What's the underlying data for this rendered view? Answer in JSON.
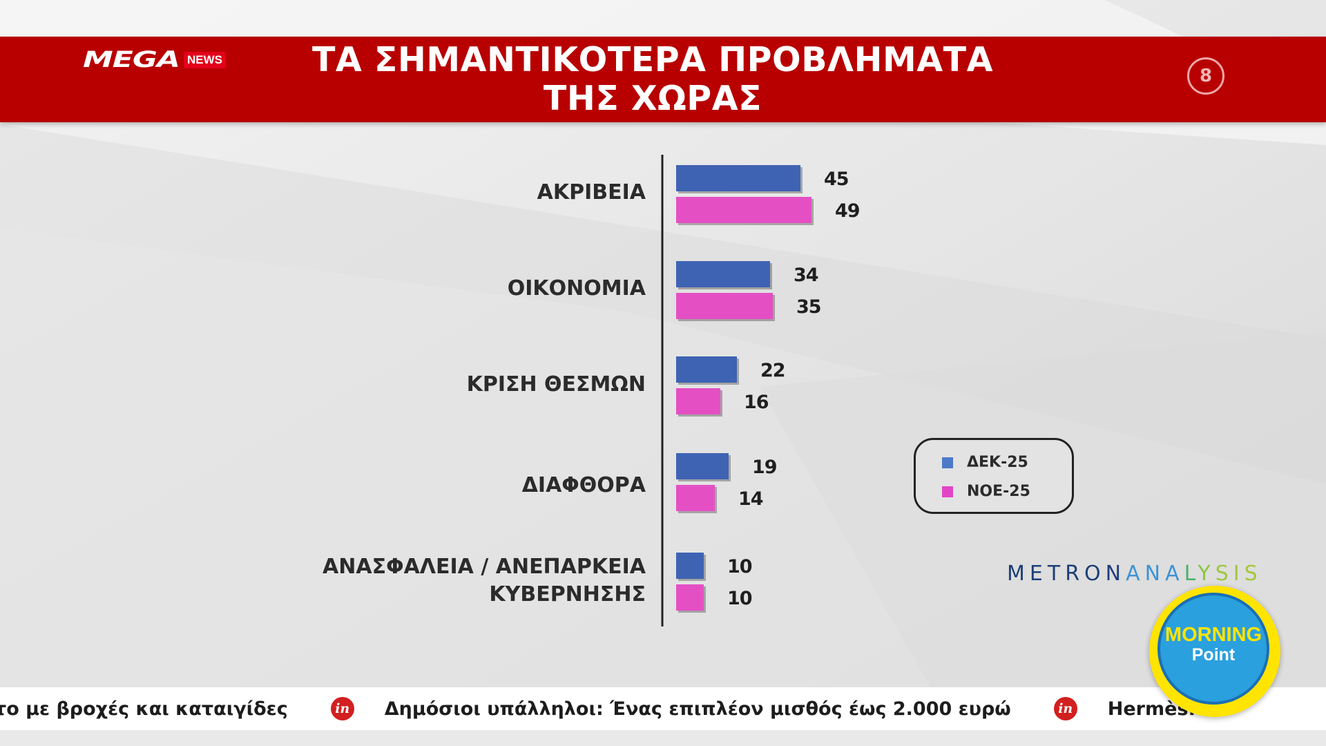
{
  "header": {
    "logo_main": "MEGA",
    "logo_tag": "NEWS",
    "title_line1": "ΤΑ ΣΗΜΑΝΤΙΚΟΤΕΡΑ ΠΡΟΒΛΗΜΑΤΑ",
    "title_line2": "ΤΗΣ ΧΩΡΑΣ",
    "page_number": "8"
  },
  "chart_data": {
    "type": "bar",
    "orientation": "horizontal",
    "categories": [
      [
        "ΑΚΡΙΒΕΙΑ"
      ],
      [
        "ΟΙΚΟΝΟΜΙΑ"
      ],
      [
        "ΚΡΙΣΗ ΘΕΣΜΩΝ"
      ],
      [
        "ΔΙΑΦΘΟΡΑ"
      ],
      [
        "ΑΝΑΣΦΑΛΕΙΑ / ΑΝΕΠΑΡΚΕΙΑ",
        "ΚΥΒΕΡΝΗΣΗΣ"
      ]
    ],
    "series": [
      {
        "name": "ΔΕΚ-25",
        "color": "#3e63b3",
        "values": [
          45,
          34,
          22,
          19,
          10
        ]
      },
      {
        "name": "ΝΟΕ-25",
        "color": "#e54fc4",
        "values": [
          49,
          35,
          16,
          14,
          10
        ]
      }
    ],
    "legend_position": "right",
    "grid": false
  },
  "source_letters": [
    "M",
    "E",
    "T",
    "R",
    "O",
    "N",
    "A",
    "N",
    "A",
    "L",
    "Y",
    "S",
    "I",
    "S"
  ],
  "source_colors": [
    "#1d3f78",
    "#1d3f78",
    "#1d3f78",
    "#1d3f78",
    "#1d3f78",
    "#1d3f78",
    "#3d93d6",
    "#3d93d6",
    "#3d93d6",
    "#4bb06b",
    "#8cc63f",
    "#9fc840",
    "#a0c63e",
    "#a7c73a"
  ],
  "ticker": {
    "items": [
      "το με βροχές και καταιγίδες",
      "Δημόσιοι υπάλληλοι: Ένας επιπλέον μισθός έως 2.000 ευρώ",
      "Hermès: Πτ"
    ],
    "icon": "in"
  },
  "badge": {
    "line1": "MORNING",
    "line2": "Point"
  }
}
